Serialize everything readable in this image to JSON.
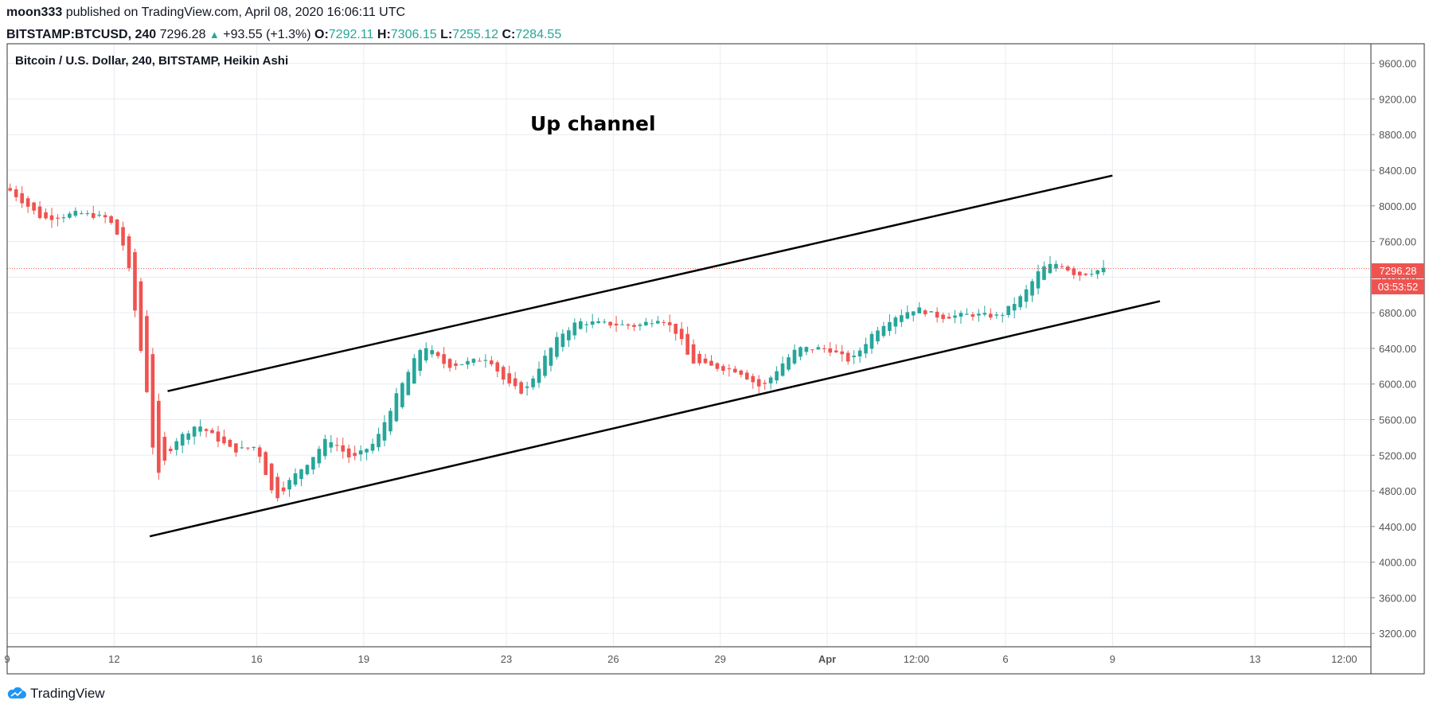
{
  "header": {
    "publisher": "moon333",
    "published_text": "published on TradingView.com, April 08, 2020 16:06:11 UTC",
    "symbol": "BITSTAMP:BTCUSD, 240",
    "last_price": "7296.28",
    "change": "+93.55 (+1.3%)",
    "o_label": "O:",
    "o_value": "7292.11",
    "h_label": "H:",
    "h_value": "7306.15",
    "l_label": "L:",
    "l_value": "7255.12",
    "c_label": "C:",
    "c_value": "7284.55"
  },
  "legend_text": "Bitcoin / U.S. Dollar, 240, BITSTAMP, Heikin Ashi",
  "annotation_text": "Up channel",
  "price_badge": "7296.28",
  "countdown_badge": "03:53:52",
  "footer": {
    "brand": "TradingView",
    "icon": "tradingview-cloud-icon"
  },
  "colors": {
    "up": "#26a69a",
    "down": "#ef5350",
    "grid": "#e8ecf0",
    "text": "#131722",
    "axis_text": "#555555",
    "price_line": "#ef5350"
  },
  "chart_data": {
    "type": "candlestick",
    "style": "Heikin Ashi",
    "title": "Bitcoin / U.S. Dollar, 240, BITSTAMP, Heikin Ashi",
    "y_ticks": [
      3200,
      3600,
      4000,
      4400,
      4800,
      5200,
      5600,
      6000,
      6400,
      6800,
      7200,
      7600,
      8000,
      8400,
      8800,
      9200,
      9600
    ],
    "y_tick_labels": [
      "3200.00",
      "3600.00",
      "4000.00",
      "4400.00",
      "4800.00",
      "5200.00",
      "5600.00",
      "6000.00",
      "6400.00",
      "6800.00",
      "7200.00",
      "7600.00",
      "8000.00",
      "8400.00",
      "8800.00",
      "9200.00",
      "9600.00"
    ],
    "ylim": [
      3050,
      9820
    ],
    "x_ticks": [
      {
        "label": "9",
        "date": "2020-03-09",
        "bold": false
      },
      {
        "label": "12",
        "date": "2020-03-12",
        "bold": false
      },
      {
        "label": "16",
        "date": "2020-03-16",
        "bold": false
      },
      {
        "label": "19",
        "date": "2020-03-19",
        "bold": false
      },
      {
        "label": "23",
        "date": "2020-03-23",
        "bold": false
      },
      {
        "label": "26",
        "date": "2020-03-26",
        "bold": false
      },
      {
        "label": "29",
        "date": "2020-03-29",
        "bold": false
      },
      {
        "label": "Apr",
        "date": "2020-04-01",
        "bold": true
      },
      {
        "label": "12:00",
        "date": "2020-04-03 12:00",
        "bold": false
      },
      {
        "label": "6",
        "date": "2020-04-06",
        "bold": false
      },
      {
        "label": "9",
        "date": "2020-04-09",
        "bold": false
      },
      {
        "label": "13",
        "date": "2020-04-13",
        "bold": false
      },
      {
        "label": "12:00",
        "date": "2020-04-15 12:00",
        "bold": false
      }
    ],
    "xlim": [
      "2020-03-09",
      "2020-04-16 06:00"
    ],
    "last_price": 7296.28,
    "channel": {
      "upper": [
        {
          "x": "2020-03-13 12:00",
          "y": 5920
        },
        {
          "x": "2020-04-09",
          "y": 8340
        }
      ],
      "lower": [
        {
          "x": "2020-03-13",
          "y": 4290
        },
        {
          "x": "2020-04-10 08:00",
          "y": 6930
        }
      ]
    },
    "anchors": [
      {
        "x": "2020-03-09 00:00",
        "y": 8200
      },
      {
        "x": "2020-03-10 00:00",
        "y": 7850
      },
      {
        "x": "2020-03-11 00:00",
        "y": 7920
      },
      {
        "x": "2020-03-11 20:00",
        "y": 7860
      },
      {
        "x": "2020-03-12 08:00",
        "y": 7500
      },
      {
        "x": "2020-03-12 16:00",
        "y": 6600
      },
      {
        "x": "2020-03-13 00:00",
        "y": 5700
      },
      {
        "x": "2020-03-13 04:00",
        "y": 4900
      },
      {
        "x": "2020-03-13 16:00",
        "y": 5350
      },
      {
        "x": "2020-03-14 08:00",
        "y": 5550
      },
      {
        "x": "2020-03-15 08:00",
        "y": 5250
      },
      {
        "x": "2020-03-16 00:00",
        "y": 5300
      },
      {
        "x": "2020-03-16 12:00",
        "y": 4700
      },
      {
        "x": "2020-03-17 00:00",
        "y": 4950
      },
      {
        "x": "2020-03-17 12:00",
        "y": 5150
      },
      {
        "x": "2020-03-18 00:00",
        "y": 5400
      },
      {
        "x": "2020-03-18 16:00",
        "y": 5150
      },
      {
        "x": "2020-03-19 08:00",
        "y": 5350
      },
      {
        "x": "2020-03-19 20:00",
        "y": 5800
      },
      {
        "x": "2020-03-20 08:00",
        "y": 6200
      },
      {
        "x": "2020-03-20 16:00",
        "y": 6450
      },
      {
        "x": "2020-03-21 08:00",
        "y": 6200
      },
      {
        "x": "2020-03-22 00:00",
        "y": 6250
      },
      {
        "x": "2020-03-22 12:00",
        "y": 6300
      },
      {
        "x": "2020-03-23 00:00",
        "y": 6000
      },
      {
        "x": "2020-03-23 12:00",
        "y": 5900
      },
      {
        "x": "2020-03-24 00:00",
        "y": 6250
      },
      {
        "x": "2020-03-24 12:00",
        "y": 6550
      },
      {
        "x": "2020-03-25 00:00",
        "y": 6700
      },
      {
        "x": "2020-03-25 16:00",
        "y": 6680
      },
      {
        "x": "2020-03-26 16:00",
        "y": 6650
      },
      {
        "x": "2020-03-27 08:00",
        "y": 6750
      },
      {
        "x": "2020-03-27 20:00",
        "y": 6550
      },
      {
        "x": "2020-03-28 04:00",
        "y": 6250
      },
      {
        "x": "2020-03-28 16:00",
        "y": 6200
      },
      {
        "x": "2020-03-29 12:00",
        "y": 6150
      },
      {
        "x": "2020-03-30 04:00",
        "y": 5950
      },
      {
        "x": "2020-03-30 16:00",
        "y": 6200
      },
      {
        "x": "2020-03-31 04:00",
        "y": 6400
      },
      {
        "x": "2020-04-01 00:00",
        "y": 6400
      },
      {
        "x": "2020-04-01 16:00",
        "y": 6250
      },
      {
        "x": "2020-04-02 08:00",
        "y": 6600
      },
      {
        "x": "2020-04-02 20:00",
        "y": 6750
      },
      {
        "x": "2020-04-03 12:00",
        "y": 6850
      },
      {
        "x": "2020-04-04 04:00",
        "y": 6750
      },
      {
        "x": "2020-04-05 00:00",
        "y": 6780
      },
      {
        "x": "2020-04-05 20:00",
        "y": 6760
      },
      {
        "x": "2020-04-06 12:00",
        "y": 7000
      },
      {
        "x": "2020-04-07 00:00",
        "y": 7300
      },
      {
        "x": "2020-04-07 12:00",
        "y": 7360
      },
      {
        "x": "2020-04-08 00:00",
        "y": 7220
      },
      {
        "x": "2020-04-08 16:00",
        "y": 7284
      }
    ]
  }
}
